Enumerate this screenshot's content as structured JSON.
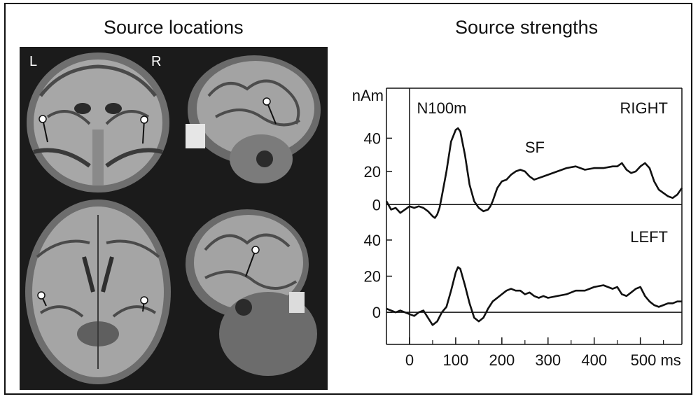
{
  "figure": {
    "left_title": "Source locations",
    "right_title": "Source strengths",
    "left_label": "L",
    "right_label": "R"
  },
  "colors": {
    "ink": "#111111",
    "mri_background": "#1a1a1a",
    "brain_gray": "#8e8e8e",
    "source_dot": "#ffffff"
  },
  "chart_data": {
    "type": "line",
    "title": "",
    "xlabel": "ms",
    "ylabel": "nAm",
    "x_ticks": [
      0,
      100,
      200,
      300,
      400,
      500
    ],
    "x_tick_labels": [
      "0",
      "100",
      "200",
      "300",
      "400",
      "500 ms"
    ],
    "xlim": [
      -50,
      590
    ],
    "panels": [
      {
        "name": "RIGHT",
        "y_ticks": [
          0,
          20,
          40
        ],
        "y_tick_labels": [
          "0",
          "20",
          "40"
        ],
        "ylim": [
          -10,
          60
        ],
        "annotations": [
          "N100m",
          "SF"
        ],
        "x": [
          -50,
          -40,
          -30,
          -20,
          -10,
          0,
          10,
          20,
          30,
          40,
          50,
          55,
          60,
          65,
          70,
          80,
          90,
          100,
          105,
          110,
          120,
          130,
          140,
          150,
          160,
          170,
          175,
          180,
          190,
          200,
          210,
          220,
          230,
          240,
          250,
          260,
          270,
          280,
          290,
          300,
          320,
          340,
          360,
          380,
          400,
          420,
          440,
          450,
          460,
          470,
          480,
          490,
          500,
          510,
          520,
          530,
          540,
          550,
          560,
          570,
          580,
          590
        ],
        "y": [
          2,
          -3,
          -2,
          -5,
          -3,
          -1,
          -2,
          -1,
          -2,
          -4,
          -7,
          -8,
          -6,
          -2,
          5,
          20,
          38,
          45,
          46,
          44,
          30,
          12,
          2,
          -2,
          -4,
          -3,
          -1,
          2,
          10,
          14,
          15,
          18,
          20,
          21,
          20,
          17,
          15,
          16,
          17,
          18,
          20,
          22,
          23,
          21,
          22,
          22,
          23,
          23,
          25,
          21,
          19,
          20,
          23,
          25,
          22,
          14,
          9,
          7,
          5,
          4,
          6,
          10
        ]
      },
      {
        "name": "LEFT",
        "y_ticks": [
          0,
          20,
          40
        ],
        "y_tick_labels": [
          "0",
          "20",
          "40"
        ],
        "ylim": [
          -10,
          45
        ],
        "annotations": [],
        "x": [
          -50,
          -40,
          -30,
          -20,
          -10,
          0,
          10,
          20,
          30,
          40,
          50,
          60,
          70,
          80,
          90,
          100,
          105,
          110,
          120,
          130,
          140,
          150,
          160,
          170,
          180,
          190,
          200,
          210,
          220,
          230,
          240,
          250,
          260,
          270,
          280,
          290,
          300,
          320,
          340,
          360,
          380,
          400,
          420,
          440,
          450,
          460,
          470,
          480,
          490,
          500,
          510,
          520,
          530,
          540,
          550,
          560,
          570,
          580,
          590
        ],
        "y": [
          2,
          1,
          0,
          1,
          0,
          -1,
          -2,
          0,
          1,
          -3,
          -7,
          -5,
          0,
          3,
          12,
          22,
          25,
          24,
          15,
          5,
          -3,
          -5,
          -3,
          2,
          6,
          8,
          10,
          12,
          13,
          12,
          12,
          10,
          11,
          9,
          8,
          9,
          8,
          9,
          10,
          12,
          12,
          14,
          15,
          13,
          14,
          10,
          9,
          11,
          13,
          14,
          9,
          6,
          4,
          3,
          4,
          5,
          5,
          6,
          6
        ]
      }
    ]
  }
}
